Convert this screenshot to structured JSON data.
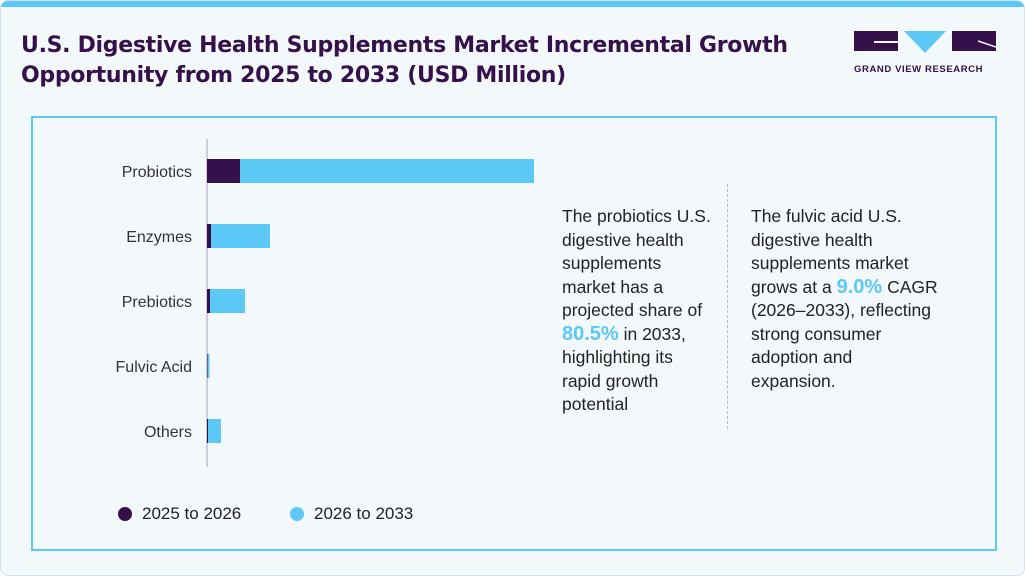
{
  "title": "U.S. Digestive Health Supplements Market Incremental Growth Opportunity from 2025 to 2033 (USD Million)",
  "logo": {
    "text": "GRAND VIEW RESEARCH"
  },
  "colors": {
    "series1": "#35104a",
    "series2": "#5bc8f5",
    "accent": "#5bc8f5"
  },
  "chart_data": {
    "type": "bar",
    "orientation": "horizontal",
    "stacked": true,
    "categories": [
      "Probiotics",
      "Enzymes",
      "Prebiotics",
      "Fulvic Acid",
      "Others"
    ],
    "series": [
      {
        "name": "2025 to 2026",
        "values": [
          33,
          4,
          3,
          0.5,
          1
        ]
      },
      {
        "name": "2026 to 2033",
        "values": [
          294,
          59,
          35,
          2,
          13
        ]
      }
    ],
    "value_units": "relative (no value axis shown)",
    "grid": false,
    "legend": "bottom-left"
  },
  "notes": {
    "left": {
      "before": "The probiotics U.S. digestive health supplements market has a projected share of ",
      "highlight": "80.5%",
      "after": " in 2033, highlighting its rapid growth potential"
    },
    "right": {
      "before": "The fulvic acid U.S. digestive health supplements market grows at a ",
      "highlight": "9.0%",
      "after": " CAGR (2026–2033), reflecting strong consumer adoption and expansion."
    }
  }
}
